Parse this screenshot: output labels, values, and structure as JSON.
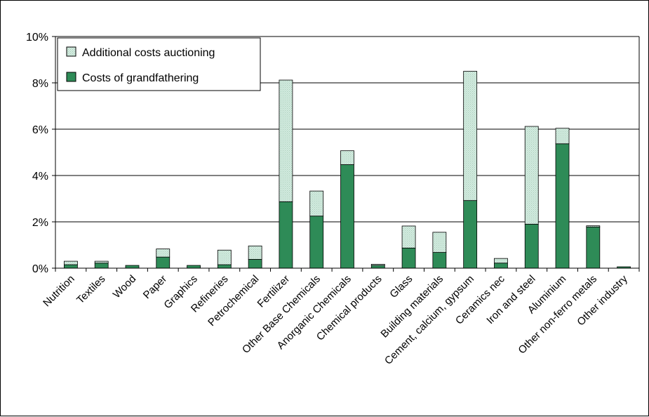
{
  "chart_data": {
    "type": "bar",
    "stacked": true,
    "categories": [
      "Nutrition",
      "Textiles",
      "Wood",
      "Paper",
      "Graphics",
      "Refineries",
      "Petrochemical",
      "Fertilizer",
      "Other Base Chemicals",
      "Anorganic Chemicals",
      "Chemical products",
      "Glass",
      "Building materials",
      "Cement, calcium, gypsum",
      "Ceramics nec",
      "Iron and steel",
      "Aluminium",
      "Other non-ferro metals",
      "Other industry"
    ],
    "series": [
      {
        "name": "Costs of grandfathering",
        "color": "#2e8b57",
        "values": [
          0.15,
          0.22,
          0.12,
          0.48,
          0.12,
          0.15,
          0.38,
          2.87,
          2.25,
          4.47,
          0.12,
          0.87,
          0.68,
          2.92,
          0.22,
          1.9,
          5.37,
          1.78,
          0.06
        ]
      },
      {
        "name": "Additional costs auctioning",
        "color": "#d3ebe0",
        "values": [
          0.15,
          0.08,
          0.0,
          0.35,
          0.0,
          0.63,
          0.58,
          5.25,
          1.08,
          0.6,
          0.05,
          0.95,
          0.87,
          5.58,
          0.2,
          4.22,
          0.67,
          0.05,
          0.0
        ]
      }
    ],
    "ylim": [
      0,
      10
    ],
    "yticks": [
      "0%",
      "2%",
      "4%",
      "6%",
      "8%",
      "10%"
    ],
    "grid": true,
    "legend_position": "top-left"
  }
}
